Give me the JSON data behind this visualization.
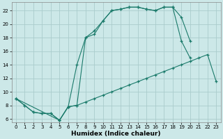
{
  "bg_color": "#cce8e8",
  "grid_color": "#aacccc",
  "line_color": "#1a7a6a",
  "xlabel": "Humidex (Indice chaleur)",
  "xlim": [
    -0.5,
    23.5
  ],
  "ylim": [
    5.5,
    23.2
  ],
  "xticks": [
    0,
    1,
    2,
    3,
    4,
    5,
    6,
    7,
    8,
    9,
    10,
    11,
    12,
    13,
    14,
    15,
    16,
    17,
    18,
    19,
    20,
    21,
    22,
    23
  ],
  "yticks": [
    6,
    8,
    10,
    12,
    14,
    16,
    18,
    20,
    22
  ],
  "line1_x": [
    0,
    1,
    2,
    3,
    4,
    5,
    6,
    7,
    8,
    9,
    10,
    11,
    12,
    13,
    14,
    15,
    16,
    17,
    18,
    19,
    20,
    21,
    22,
    23
  ],
  "line1_y": [
    9.0,
    8.0,
    7.0,
    6.8,
    6.8,
    5.8,
    7.8,
    8.0,
    8.5,
    9.0,
    9.5,
    10.0,
    10.5,
    11.0,
    11.5,
    12.0,
    12.5,
    13.0,
    13.5,
    14.0,
    14.5,
    15.0,
    15.5,
    11.5
  ],
  "line2_x": [
    0,
    1,
    2,
    3,
    4,
    5,
    6,
    7,
    8,
    9,
    10,
    11,
    12,
    13,
    14,
    15,
    16,
    17,
    18,
    19,
    20
  ],
  "line2_y": [
    9.0,
    8.0,
    7.0,
    6.8,
    6.8,
    5.8,
    7.8,
    8.0,
    18.0,
    18.5,
    20.5,
    22.0,
    22.2,
    22.5,
    22.5,
    22.2,
    22.0,
    22.5,
    22.5,
    21.0,
    17.5
  ],
  "line3_x": [
    0,
    5,
    6,
    7,
    8,
    9,
    10,
    11,
    12,
    13,
    14,
    15,
    16,
    17,
    18,
    19,
    20
  ],
  "line3_y": [
    9.0,
    5.8,
    7.8,
    14.0,
    18.0,
    19.0,
    20.5,
    22.0,
    22.2,
    22.5,
    22.5,
    22.2,
    22.0,
    22.5,
    22.5,
    17.5,
    15.0
  ]
}
